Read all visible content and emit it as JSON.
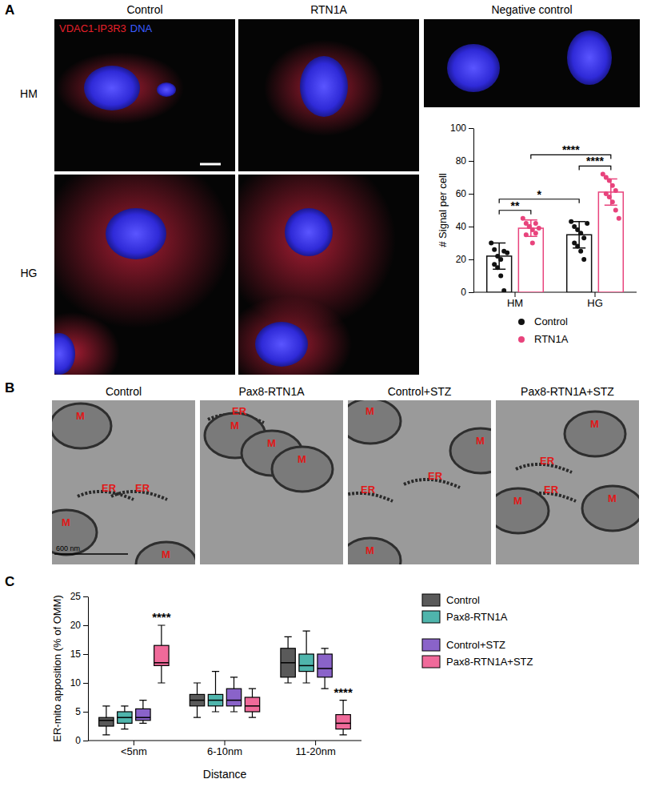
{
  "chart_data": [
    {
      "type": "bar",
      "y_label": "# Signal per cell",
      "categories": [
        "HM",
        "HG"
      ],
      "series": [
        {
          "name": "Control",
          "color": "#111111",
          "values": [
            22,
            35
          ],
          "errors": [
            8,
            8
          ],
          "points": [
            [
              30,
              26,
              22,
              20,
              25,
              17,
              15,
              10,
              1,
              24
            ],
            [
              43,
              40,
              38,
              36,
              33,
              30,
              28,
              25,
              20,
              42
            ]
          ]
        },
        {
          "name": "RTN1A",
          "color": "#e8437c",
          "values": [
            39,
            61
          ],
          "errors": [
            5,
            8
          ],
          "points": [
            [
              45,
              42,
              40,
              38,
              36,
              35,
              40,
              30,
              42,
              39
            ],
            [
              72,
              70,
              68,
              65,
              62,
              60,
              58,
              55,
              50,
              45
            ]
          ]
        }
      ],
      "ylim": [
        0,
        100
      ],
      "yticks": [
        0,
        20,
        40,
        60,
        80,
        100
      ],
      "legend": "bottom",
      "comparisons": [
        {
          "label": "**",
          "a": [
            0,
            0
          ],
          "b": [
            0,
            1
          ]
        },
        {
          "label": "****",
          "a": [
            1,
            0
          ],
          "b": [
            1,
            1
          ]
        },
        {
          "label": "*",
          "a": [
            0,
            0
          ],
          "b": [
            1,
            0
          ]
        },
        {
          "label": "****",
          "a": [
            0,
            1
          ],
          "b": [
            1,
            1
          ]
        }
      ]
    },
    {
      "type": "box",
      "y_label": "ER-mito apposition (% of OMM)",
      "x_label": "Distance",
      "categories": [
        "<5nm",
        "6-10nm",
        "11-20nm"
      ],
      "series": [
        {
          "name": "Control",
          "color": "#5a5a5a",
          "values": [
            [
              1,
              2.5,
              3.5,
              4,
              6
            ],
            [
              4,
              6,
              7,
              8,
              10
            ],
            [
              10,
              11,
              13.5,
              16,
              18
            ]
          ]
        },
        {
          "name": "Pax8-RTN1A",
          "color": "#4fb5ac",
          "values": [
            [
              2,
              3,
              4,
              5,
              6
            ],
            [
              5,
              6,
              7,
              8,
              12
            ],
            [
              10,
              12,
              13,
              15,
              19
            ]
          ]
        },
        {
          "name": "Control+STZ",
          "color": "#8a63c9",
          "values": [
            [
              3,
              3.5,
              4,
              5.5,
              7
            ],
            [
              5,
              6,
              7,
              9,
              11
            ],
            [
              9,
              11,
              12.5,
              15,
              16
            ]
          ]
        },
        {
          "name": "Pax8-RTN1A+STZ",
          "color": "#f06a9a",
          "values": [
            [
              10,
              13,
              13.5,
              16.5,
              20
            ],
            [
              4,
              5,
              6,
              7.5,
              9
            ],
            [
              1,
              2,
              3,
              4.5,
              7
            ]
          ]
        }
      ],
      "ylim": [
        0,
        25
      ],
      "yticks": [
        0,
        5,
        10,
        15,
        20,
        25
      ],
      "legend": "right",
      "annotations": [
        {
          "label": "****",
          "category": 0,
          "series": 3
        },
        {
          "label": "****",
          "category": 2,
          "series": 3
        }
      ]
    }
  ],
  "figure": {
    "panel_labels": [
      "A",
      "B",
      "C"
    ],
    "panel_a": {
      "columns": [
        "Control",
        "RTN1A",
        "Negative control"
      ],
      "rows": [
        "HM",
        "HG"
      ],
      "stain": [
        "VDAC1-IP3R3",
        "DNA"
      ]
    },
    "panel_b": {
      "titles": [
        "Control",
        "Pax8-RTN1A",
        "Control+STZ",
        "Pax8-RTN1A+STZ"
      ],
      "scale_bar": "600 nm",
      "labels": [
        [
          "M",
          "ER",
          "ER",
          "M",
          "M"
        ],
        [
          "ER",
          "M",
          "M",
          "M"
        ],
        [
          "M",
          "ER",
          "ER",
          "M",
          "M"
        ],
        [
          "ER",
          "M",
          "ER",
          "M",
          "M"
        ]
      ]
    }
  }
}
